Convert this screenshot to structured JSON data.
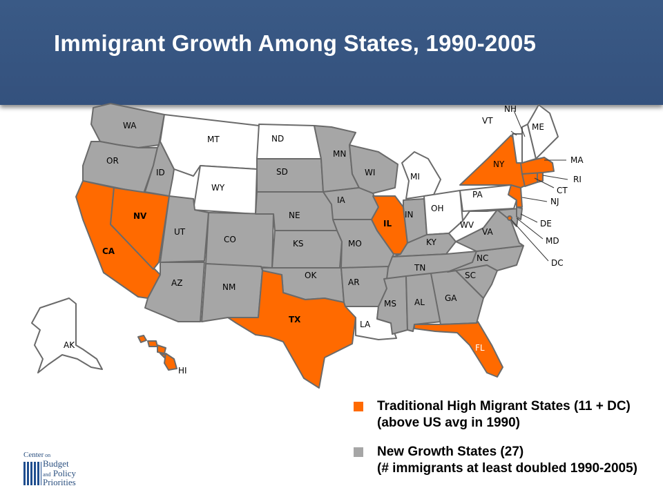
{
  "title": "Immigrant Growth Among States, 1990-2005",
  "colors": {
    "traditional": "#ff6a00",
    "new_growth": "#a6a6a6",
    "other": "#ffffff",
    "border": "#6a6a6a",
    "header": "#3a5a86"
  },
  "categories": {
    "traditional": [
      "CA",
      "NV",
      "TX",
      "IL",
      "NY",
      "NJ",
      "MA",
      "RI",
      "CT",
      "FL",
      "HI",
      "DC"
    ],
    "new_growth": [
      "WA",
      "OR",
      "ID",
      "UT",
      "AZ",
      "NM",
      "CO",
      "OK",
      "AR",
      "MS",
      "AL",
      "GA",
      "SC",
      "NC",
      "TN",
      "KY",
      "VA",
      "MD",
      "DE",
      "IN",
      "MO",
      "IA",
      "NE",
      "KS",
      "SD",
      "MN",
      "WI"
    ],
    "other": [
      "MT",
      "WY",
      "ND",
      "LA",
      "MI",
      "OH",
      "PA",
      "WV",
      "VT",
      "NH",
      "ME",
      "AK"
    ]
  },
  "labels": {
    "WA": "WA",
    "OR": "OR",
    "CA": "CA",
    "NV": "NV",
    "ID": "ID",
    "MT": "MT",
    "WY": "WY",
    "UT": "UT",
    "AZ": "AZ",
    "CO": "CO",
    "NM": "NM",
    "ND": "ND",
    "SD": "SD",
    "NE": "NE",
    "KS": "KS",
    "OK": "OK",
    "TX": "TX",
    "MN": "MN",
    "IA": "IA",
    "MO": "MO",
    "AR": "AR",
    "LA": "LA",
    "WI": "WI",
    "IL": "IL",
    "MI": "MI",
    "IN": "IN",
    "OH": "OH",
    "KY": "KY",
    "TN": "TN",
    "MS": "MS",
    "AL": "AL",
    "GA": "GA",
    "FL": "FL",
    "SC": "SC",
    "NC": "NC",
    "VA": "VA",
    "WV": "WV",
    "PA": "PA",
    "NY": "NY",
    "VT": "VT",
    "NH": "NH",
    "ME": "ME",
    "MA": "MA",
    "RI": "RI",
    "CT": "CT",
    "NJ": "NJ",
    "DE": "DE",
    "MD": "MD",
    "DC": "DC",
    "AK": "AK",
    "HI": "HI"
  },
  "legend": [
    {
      "key": "traditional",
      "line1": "Traditional High Migrant States (11 + DC)",
      "line2": "(above US avg in 1990)"
    },
    {
      "key": "new_growth",
      "line1": "New Growth States (27)",
      "line2": "(# immigrants at least doubled 1990-2005)"
    }
  ],
  "logo": {
    "line1": "Center",
    "line1b": "on",
    "line2": "Budget",
    "line3": "and",
    "line3b": "Policy",
    "line4": "Priorities"
  }
}
